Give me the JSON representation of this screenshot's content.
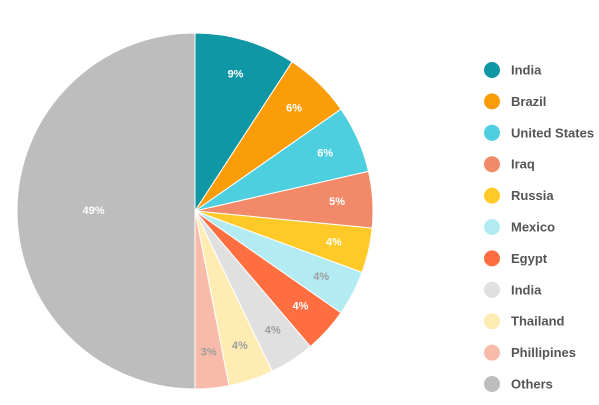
{
  "chart_data": {
    "type": "pie",
    "categories": [
      "India",
      "Brazil",
      "United States",
      "Iraq",
      "Russia",
      "Mexico",
      "Egypt",
      "India",
      "Thailand",
      "Phillipines",
      "Others"
    ],
    "values": [
      9,
      6,
      6,
      5,
      4,
      4,
      4,
      4,
      4,
      3,
      49
    ],
    "labels": [
      "9%",
      "6%",
      "6%",
      "5%",
      "4%",
      "4%",
      "4%",
      "4%",
      "4%",
      "3%",
      "49%"
    ],
    "colors": [
      "#0F97A5",
      "#FB9D09",
      "#4DCFE0",
      "#F28A69",
      "#FFCA28",
      "#B2EBF2",
      "#FF6E40",
      "#E0E0E0",
      "#FFECB3",
      "#F8BBAA",
      "#BDBDBD"
    ],
    "label_colors": [
      "#ffffff",
      "#ffffff",
      "#ffffff",
      "#ffffff",
      "#ffffff",
      "#9E9E9E",
      "#ffffff",
      "#9E9E9E",
      "#9E9E9E",
      "#9E9E9E",
      "#ffffff"
    ],
    "legend_position": "right",
    "title": ""
  }
}
